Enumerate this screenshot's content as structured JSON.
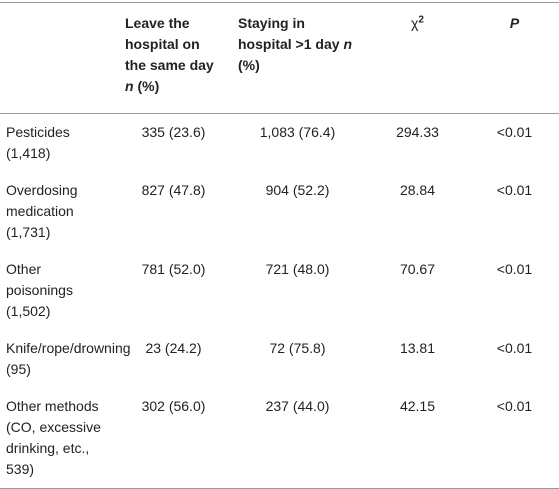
{
  "table": {
    "header": [
      [
        "Leave the hospital on the same day ",
        "n",
        " (%)"
      ],
      [
        "Staying in hospital >1 day ",
        "n",
        " (%)"
      ],
      [
        "χ",
        "2"
      ],
      [
        "P"
      ]
    ],
    "rows": [
      {
        "label": "Pesticides (1,418)",
        "cells": [
          "335 (23.6)",
          "1,083 (76.4)",
          "294.33",
          "<0.01"
        ]
      },
      {
        "label": "Overdosing medication (1,731)",
        "cells": [
          "827 (47.8)",
          "904 (52.2)",
          "28.84",
          "<0.01"
        ]
      },
      {
        "label": "Other poisonings (1,502)",
        "cells": [
          "781 (52.0)",
          "721 (48.0)",
          "70.67",
          "<0.01"
        ]
      },
      {
        "label": "Knife/rope/drowning (95)",
        "cells": [
          "23 (24.2)",
          "72 (75.8)",
          "13.81",
          "<0.01"
        ]
      },
      {
        "label": "Other methods (CO, excessive drinking, etc., 539)",
        "cells": [
          "302 (56.0)",
          "237 (44.0)",
          "42.15",
          "<0.01"
        ]
      }
    ]
  }
}
